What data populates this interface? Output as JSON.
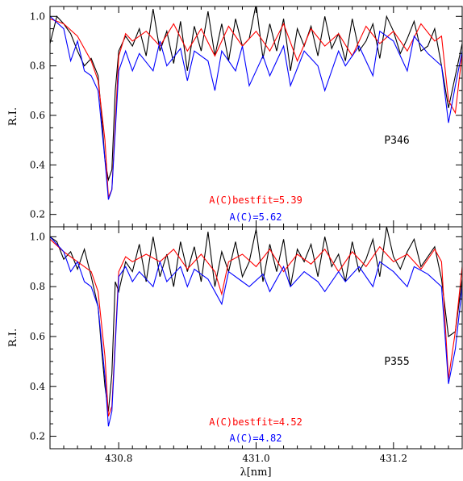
{
  "chart_data": [
    {
      "type": "line",
      "panel_label": "P346",
      "ylabel": "R.I.",
      "xlabel": "",
      "xlim": [
        430.7,
        431.3
      ],
      "ylim": [
        0.15,
        1.04
      ],
      "yticks": [
        0.2,
        0.4,
        0.6,
        0.8,
        1.0
      ],
      "ytick_labels": [
        "0.2",
        "0.4",
        "0.6",
        "0.8",
        "1.0"
      ],
      "xticks": [
        430.8,
        431.0,
        431.2
      ],
      "xtick_labels": [
        "",
        "",
        ""
      ],
      "annotations": [
        {
          "text": "A(C)bestfit=5.39",
          "color": "#ff0000"
        },
        {
          "text": "A(C)=5.62",
          "color": "#0000ff"
        }
      ],
      "series": [
        {
          "color": "#000000",
          "x": [
            430.7,
            430.71,
            430.72,
            430.73,
            430.74,
            430.75,
            430.76,
            430.77,
            430.775,
            430.78,
            430.785,
            430.79,
            430.795,
            430.8,
            430.81,
            430.82,
            430.83,
            430.84,
            430.85,
            430.86,
            430.87,
            430.88,
            430.89,
            430.9,
            430.91,
            430.92,
            430.93,
            430.94,
            430.95,
            430.96,
            430.97,
            430.98,
            430.99,
            431.0,
            431.01,
            431.02,
            431.03,
            431.04,
            431.05,
            431.06,
            431.07,
            431.08,
            431.09,
            431.1,
            431.11,
            431.12,
            431.13,
            431.14,
            431.15,
            431.16,
            431.17,
            431.18,
            431.19,
            431.2,
            431.21,
            431.22,
            431.23,
            431.24,
            431.25,
            431.26,
            431.27,
            431.28,
            431.29,
            431.3
          ],
          "values": [
            0.89,
            1.0,
            0.97,
            0.93,
            0.86,
            0.8,
            0.83,
            0.76,
            0.6,
            0.42,
            0.34,
            0.38,
            0.7,
            0.86,
            0.92,
            0.88,
            0.95,
            0.84,
            1.03,
            0.86,
            0.94,
            0.81,
            0.98,
            0.78,
            0.96,
            0.86,
            1.02,
            0.84,
            0.97,
            0.82,
            0.99,
            0.88,
            0.91,
            1.05,
            0.83,
            0.97,
            0.86,
            0.99,
            0.78,
            0.95,
            0.88,
            0.96,
            0.84,
            1.0,
            0.87,
            0.93,
            0.82,
            0.99,
            0.86,
            0.9,
            0.97,
            0.83,
            1.0,
            0.94,
            0.85,
            0.91,
            0.98,
            0.86,
            0.88,
            0.95,
            0.8,
            0.63,
            0.76,
            0.89
          ]
        },
        {
          "color": "#ff0000",
          "x": [
            430.7,
            430.72,
            430.74,
            430.76,
            430.77,
            430.78,
            430.785,
            430.79,
            430.8,
            430.81,
            430.82,
            430.84,
            430.86,
            430.88,
            430.9,
            430.92,
            430.94,
            430.96,
            430.98,
            431.0,
            431.02,
            431.04,
            431.06,
            431.08,
            431.1,
            431.12,
            431.14,
            431.16,
            431.18,
            431.2,
            431.22,
            431.24,
            431.26,
            431.27,
            431.28,
            431.29,
            431.3
          ],
          "values": [
            0.99,
            0.97,
            0.92,
            0.82,
            0.74,
            0.5,
            0.27,
            0.3,
            0.84,
            0.93,
            0.9,
            0.94,
            0.88,
            0.97,
            0.86,
            0.95,
            0.84,
            0.96,
            0.88,
            0.94,
            0.86,
            0.97,
            0.82,
            0.95,
            0.88,
            0.93,
            0.84,
            0.96,
            0.89,
            0.94,
            0.86,
            0.97,
            0.9,
            0.92,
            0.66,
            0.61,
            0.85
          ]
        },
        {
          "color": "#0000ff",
          "x": [
            430.7,
            430.72,
            430.73,
            430.74,
            430.75,
            430.76,
            430.77,
            430.78,
            430.785,
            430.79,
            430.8,
            430.81,
            430.82,
            430.83,
            430.85,
            430.86,
            430.87,
            430.89,
            430.9,
            430.91,
            430.93,
            430.94,
            430.95,
            430.97,
            430.98,
            430.99,
            431.01,
            431.02,
            431.04,
            431.05,
            431.07,
            431.09,
            431.1,
            431.12,
            431.13,
            431.15,
            431.17,
            431.18,
            431.2,
            431.22,
            431.23,
            431.25,
            431.27,
            431.28,
            431.29,
            431.3
          ],
          "values": [
            1.0,
            0.95,
            0.82,
            0.9,
            0.78,
            0.76,
            0.7,
            0.42,
            0.26,
            0.3,
            0.78,
            0.86,
            0.78,
            0.85,
            0.78,
            0.9,
            0.8,
            0.87,
            0.74,
            0.86,
            0.82,
            0.7,
            0.86,
            0.78,
            0.88,
            0.72,
            0.84,
            0.76,
            0.88,
            0.72,
            0.86,
            0.8,
            0.7,
            0.86,
            0.8,
            0.88,
            0.76,
            0.94,
            0.9,
            0.78,
            0.92,
            0.85,
            0.8,
            0.57,
            0.72,
            0.86
          ]
        }
      ]
    },
    {
      "type": "line",
      "panel_label": "P355",
      "ylabel": "R.I.",
      "xlabel": "λ[nm]",
      "xlim": [
        430.7,
        431.3
      ],
      "ylim": [
        0.15,
        1.04
      ],
      "yticks": [
        0.2,
        0.4,
        0.6,
        0.8,
        1.0
      ],
      "ytick_labels": [
        "0.2",
        "0.4",
        "0.6",
        "0.8",
        "1.0"
      ],
      "xticks": [
        430.8,
        431.0,
        431.2
      ],
      "xtick_labels": [
        "430.8",
        "431.0",
        "431.2"
      ],
      "annotations": [
        {
          "text": "A(C)bestfit=4.52",
          "color": "#ff0000"
        },
        {
          "text": "A(C)=4.82",
          "color": "#0000ff"
        }
      ],
      "series": [
        {
          "color": "#000000",
          "x": [
            430.7,
            430.71,
            430.72,
            430.73,
            430.74,
            430.75,
            430.76,
            430.77,
            430.775,
            430.78,
            430.785,
            430.79,
            430.795,
            430.8,
            430.81,
            430.82,
            430.83,
            430.84,
            430.85,
            430.86,
            430.87,
            430.88,
            430.89,
            430.9,
            430.91,
            430.92,
            430.93,
            430.94,
            430.95,
            430.96,
            430.97,
            430.98,
            430.99,
            431.0,
            431.01,
            431.02,
            431.03,
            431.04,
            431.05,
            431.06,
            431.07,
            431.08,
            431.09,
            431.1,
            431.11,
            431.12,
            431.13,
            431.14,
            431.15,
            431.16,
            431.17,
            431.18,
            431.19,
            431.2,
            431.21,
            431.22,
            431.23,
            431.24,
            431.25,
            431.26,
            431.27,
            431.28,
            431.29,
            431.3
          ],
          "values": [
            1.0,
            0.98,
            0.91,
            0.94,
            0.87,
            0.95,
            0.84,
            0.72,
            0.55,
            0.4,
            0.3,
            0.45,
            0.82,
            0.78,
            0.9,
            0.86,
            0.97,
            0.82,
            1.0,
            0.84,
            0.93,
            0.8,
            0.98,
            0.86,
            0.96,
            0.82,
            1.02,
            0.8,
            0.94,
            0.86,
            0.98,
            0.84,
            0.9,
            1.03,
            0.82,
            0.97,
            0.86,
            0.99,
            0.8,
            0.95,
            0.9,
            0.97,
            0.84,
            1.0,
            0.88,
            0.93,
            0.82,
            0.98,
            0.86,
            0.91,
            0.99,
            0.84,
            1.04,
            0.92,
            0.87,
            0.94,
            0.99,
            0.88,
            0.92,
            0.96,
            0.83,
            0.6,
            0.62,
            0.83
          ]
        },
        {
          "color": "#ff0000",
          "x": [
            430.7,
            430.72,
            430.74,
            430.76,
            430.77,
            430.78,
            430.785,
            430.79,
            430.8,
            430.81,
            430.82,
            430.84,
            430.86,
            430.88,
            430.9,
            430.92,
            430.94,
            430.95,
            430.96,
            430.98,
            431.0,
            431.02,
            431.04,
            431.06,
            431.08,
            431.1,
            431.12,
            431.14,
            431.16,
            431.18,
            431.2,
            431.22,
            431.24,
            431.26,
            431.27,
            431.28,
            431.29,
            431.3
          ],
          "values": [
            0.99,
            0.94,
            0.9,
            0.86,
            0.78,
            0.52,
            0.28,
            0.32,
            0.86,
            0.92,
            0.9,
            0.93,
            0.9,
            0.95,
            0.87,
            0.93,
            0.86,
            0.77,
            0.9,
            0.93,
            0.88,
            0.95,
            0.86,
            0.93,
            0.89,
            0.95,
            0.86,
            0.94,
            0.88,
            0.96,
            0.9,
            0.93,
            0.87,
            0.95,
            0.9,
            0.43,
            0.62,
            0.88
          ]
        },
        {
          "color": "#0000ff",
          "x": [
            430.7,
            430.72,
            430.73,
            430.74,
            430.75,
            430.76,
            430.77,
            430.78,
            430.785,
            430.79,
            430.8,
            430.81,
            430.82,
            430.83,
            430.85,
            430.86,
            430.87,
            430.89,
            430.9,
            430.91,
            430.93,
            430.94,
            430.95,
            430.96,
            430.98,
            430.99,
            431.01,
            431.02,
            431.04,
            431.05,
            431.07,
            431.09,
            431.1,
            431.12,
            431.13,
            431.15,
            431.17,
            431.18,
            431.2,
            431.22,
            431.23,
            431.25,
            431.27,
            431.28,
            431.29,
            431.3
          ],
          "values": [
            1.0,
            0.94,
            0.86,
            0.9,
            0.82,
            0.8,
            0.72,
            0.44,
            0.24,
            0.3,
            0.84,
            0.88,
            0.82,
            0.86,
            0.8,
            0.9,
            0.82,
            0.88,
            0.8,
            0.87,
            0.83,
            0.78,
            0.73,
            0.86,
            0.82,
            0.8,
            0.85,
            0.78,
            0.88,
            0.8,
            0.86,
            0.82,
            0.78,
            0.86,
            0.82,
            0.88,
            0.8,
            0.9,
            0.86,
            0.8,
            0.88,
            0.85,
            0.8,
            0.41,
            0.55,
            0.8
          ]
        }
      ]
    }
  ]
}
